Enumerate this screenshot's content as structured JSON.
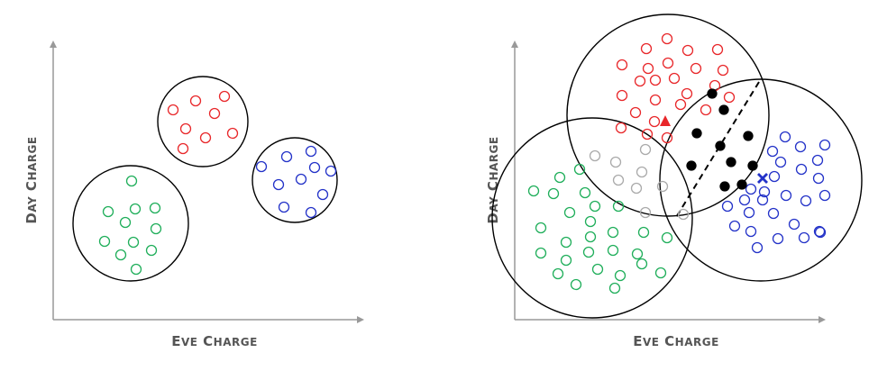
{
  "diagrams": [
    {
      "xlabel": "Eve Charge",
      "ylabel": "Day Charge",
      "clusters": [
        {
          "color": "#e8272a",
          "points": 9
        },
        {
          "color": "#2332c8",
          "points": 10
        },
        {
          "color": "#1fae5a",
          "points": 12
        }
      ]
    },
    {
      "xlabel": "Eve Charge",
      "ylabel": "Day Charge",
      "clusters": [
        {
          "color": "#e8272a",
          "points": 24,
          "centroid_marker": "triangle"
        },
        {
          "color": "#2332c8",
          "points": 27,
          "centroid_marker": "cross"
        },
        {
          "color": "#1fae5a",
          "points": 26
        },
        {
          "color": "#aaaaaa",
          "points": 9,
          "note": "overlap"
        },
        {
          "color": "#000000",
          "points": 10,
          "note": "overlap-filled"
        }
      ],
      "divider": "dashed"
    }
  ],
  "colors": {
    "red": "#e8272a",
    "blue": "#2332c8",
    "green": "#1fae5a",
    "gray": "#aaaaaa",
    "black": "#000000",
    "axis": "#999999",
    "label": "#555555"
  }
}
